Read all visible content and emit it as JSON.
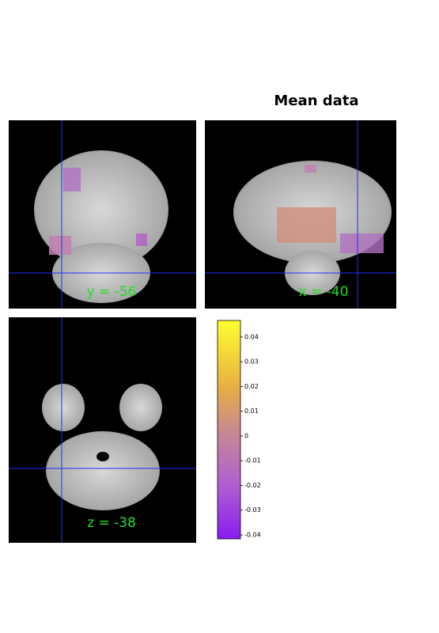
{
  "title": "Mean data",
  "panels": [
    {
      "label": "y = -56"
    },
    {
      "label": "x = -40"
    },
    {
      "label": "z = -38"
    }
  ],
  "colorbar": {
    "limits": [
      -0.0416,
      0.0467
    ],
    "ticks": [
      0.04,
      0.03,
      0.02,
      0.01,
      0,
      -0.01,
      -0.02,
      -0.03,
      -0.04
    ]
  }
}
